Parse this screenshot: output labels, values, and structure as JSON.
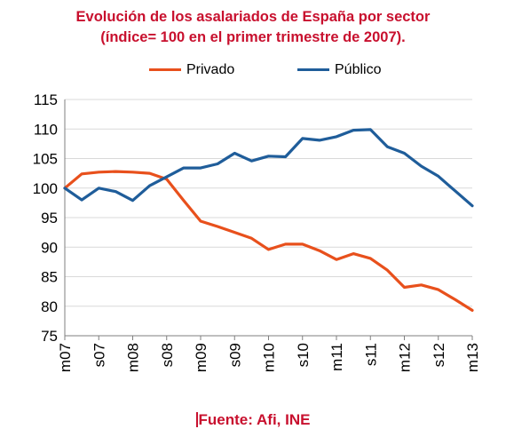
{
  "title_line1": "Evolución de los asalariados de España por sector",
  "title_line2": "(índice= 100 en el primer trimestre de 2007).",
  "source": "Fuente: Afi, INE",
  "colors": {
    "privado": "#e8501c",
    "publico": "#1f5d9a",
    "title": "#c8102e"
  },
  "chart_data": {
    "type": "line",
    "title": "Evolución de los asalariados de España por sector (índice= 100 en el primer trimestre de 2007).",
    "xlabel": "",
    "ylabel": "",
    "ylim": [
      75,
      115
    ],
    "yticks": [
      75,
      80,
      85,
      90,
      95,
      100,
      105,
      110,
      115
    ],
    "x_tick_labels": [
      "m07",
      "s07",
      "m08",
      "s08",
      "m09",
      "s09",
      "m10",
      "s10",
      "m11",
      "s11",
      "m12",
      "s12",
      "m13"
    ],
    "legend_position": "top",
    "grid": "horizontal",
    "x": [
      "2007Q1",
      "2007Q2",
      "2007Q3",
      "2007Q4",
      "2008Q1",
      "2008Q2",
      "2008Q3",
      "2008Q4",
      "2009Q1",
      "2009Q2",
      "2009Q3",
      "2009Q4",
      "2010Q1",
      "2010Q2",
      "2010Q3",
      "2010Q4",
      "2011Q1",
      "2011Q2",
      "2011Q3",
      "2011Q4",
      "2012Q1",
      "2012Q2",
      "2012Q3",
      "2012Q4",
      "2013Q1"
    ],
    "series": [
      {
        "name": "Privado",
        "values": [
          100,
          102.4,
          102.7,
          102.8,
          102.7,
          102.5,
          101.5,
          97.9,
          94.4,
          93.5,
          92.5,
          91.5,
          89.6,
          90.5,
          90.5,
          89.4,
          87.9,
          88.9,
          88.1,
          86.1,
          83.2,
          83.6,
          82.8,
          81.1,
          79.3
        ]
      },
      {
        "name": "Público",
        "values": [
          100,
          98.0,
          100.0,
          99.4,
          97.9,
          100.4,
          101.9,
          103.4,
          103.4,
          104.1,
          105.9,
          104.6,
          105.4,
          105.3,
          108.4,
          108.1,
          108.7,
          109.8,
          109.9,
          107.0,
          105.9,
          103.7,
          102.0,
          99.5,
          97.0
        ]
      }
    ]
  }
}
